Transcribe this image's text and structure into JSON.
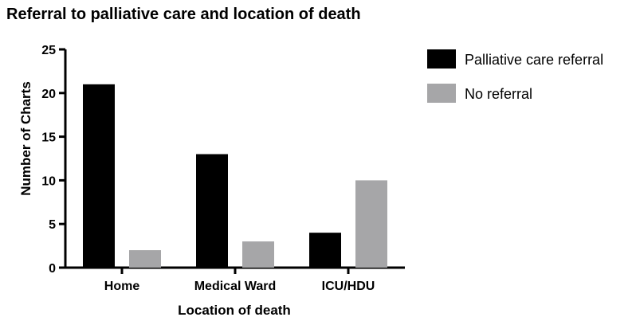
{
  "chart_data": {
    "type": "bar",
    "title": "Referral to palliative care and location of death",
    "xlabel": "Location of death",
    "ylabel": "Number of Charts",
    "categories": [
      "Home",
      "Medical Ward",
      "ICU/HDU"
    ],
    "series": [
      {
        "name": "Palliative care referral",
        "color": "#000000",
        "values": [
          21,
          13,
          4
        ]
      },
      {
        "name": "No referral",
        "color": "#a6a6a8",
        "values": [
          2,
          3,
          10
        ]
      }
    ],
    "ylim": [
      0,
      25
    ],
    "yticks": [
      0,
      5,
      10,
      15,
      20,
      25
    ],
    "grid": false,
    "legend_position": "top-right"
  }
}
